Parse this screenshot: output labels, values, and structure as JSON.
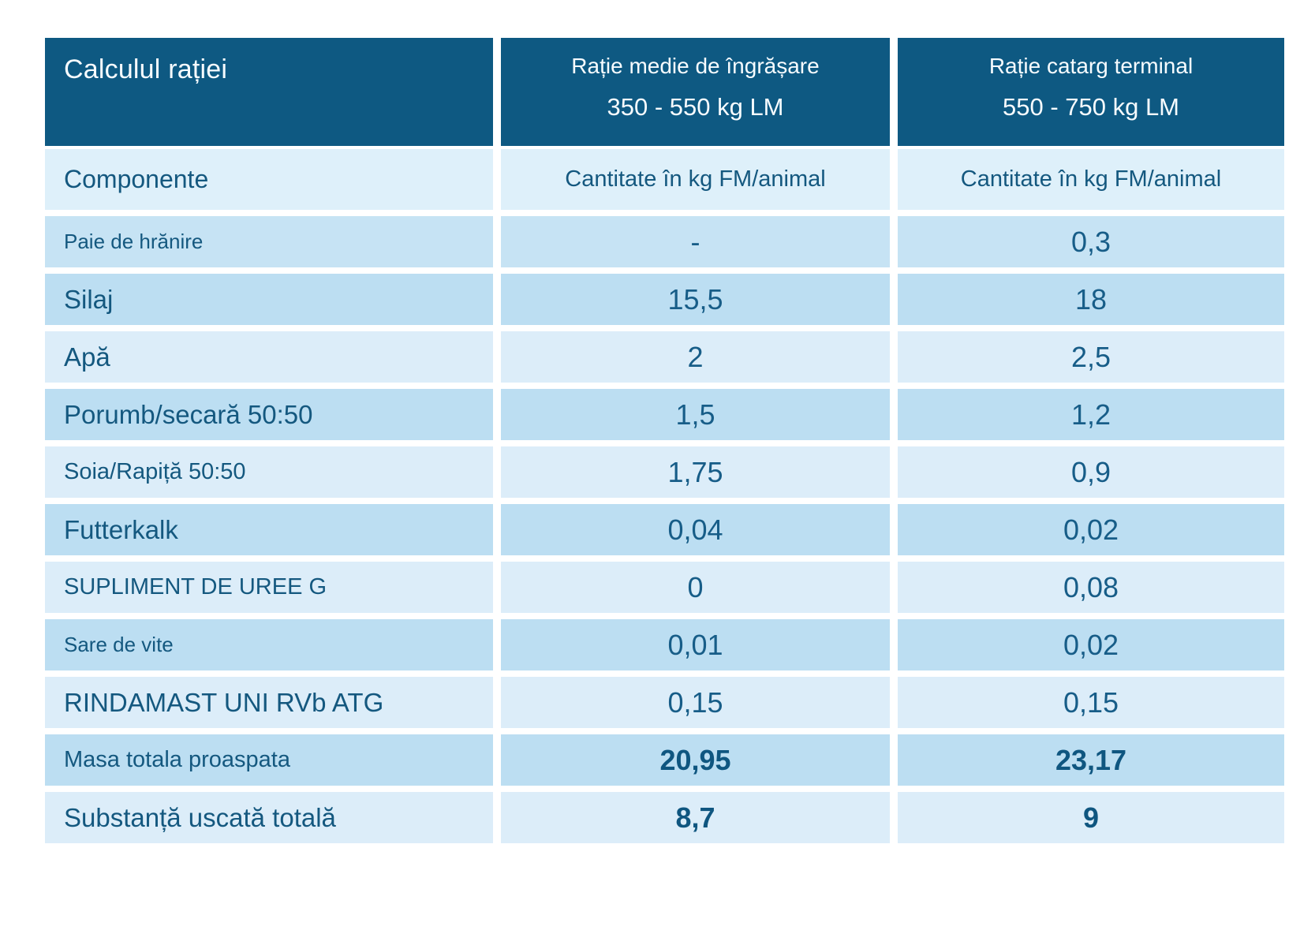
{
  "colors": {
    "header_background": "#0e5982",
    "header_text": "#f7fcff",
    "row_light": "#dcedf9",
    "row_medium_light": "#c6e3f4",
    "row_medium": "#bcdef2",
    "cell_text": "#14587f",
    "value_text": "#175d88",
    "page_background": "#ffffff"
  },
  "table": {
    "header": {
      "title": "Calculul rației",
      "col2": {
        "line1": "Rație medie de îngrășare",
        "line2": "350 - 550 kg LM"
      },
      "col3": {
        "line1": "Rație catarg terminal",
        "line2": "550 - 750 kg LM"
      }
    },
    "subheader": {
      "label": "Componente",
      "col2": "Cantitate în kg FM/animal",
      "col3": "Cantitate în kg FM/animal"
    },
    "rows": [
      {
        "label": "Paie de hrănire",
        "values": [
          "-",
          "0,3"
        ],
        "shade": "mlight",
        "size": "sm",
        "bold": false
      },
      {
        "label": "Silaj",
        "values": [
          "15,5",
          "18"
        ],
        "shade": "medium",
        "size": "lg",
        "bold": false
      },
      {
        "label": "Apă",
        "values": [
          "2",
          "2,5"
        ],
        "shade": "light",
        "size": "lg",
        "bold": false
      },
      {
        "label": "Porumb/secară 50:50",
        "values": [
          "1,5",
          "1,2"
        ],
        "shade": "medium",
        "size": "lg",
        "bold": false
      },
      {
        "label": "Soia/Rapiță 50:50",
        "values": [
          "1,75",
          "0,9"
        ],
        "shade": "light",
        "size": "md",
        "bold": false
      },
      {
        "label": "Futterkalk",
        "values": [
          "0,04",
          "0,02"
        ],
        "shade": "medium",
        "size": "lg",
        "bold": false
      },
      {
        "label": "SUPLIMENT DE UREE G",
        "values": [
          "0",
          "0,08"
        ],
        "shade": "light",
        "size": "md",
        "bold": false
      },
      {
        "label": "Sare de vite",
        "values": [
          "0,01",
          "0,02"
        ],
        "shade": "medium",
        "size": "sm",
        "bold": false
      },
      {
        "label": "RINDAMAST UNI RVb ATG",
        "values": [
          "0,15",
          "0,15"
        ],
        "shade": "light",
        "size": "lg",
        "bold": false
      },
      {
        "label": "Masa totala proaspata",
        "values": [
          "20,95",
          "23,17"
        ],
        "shade": "medium",
        "size": "md",
        "bold": true
      },
      {
        "label": "Substanță uscată totală",
        "values": [
          "8,7",
          "9"
        ],
        "shade": "light",
        "size": "lg",
        "bold": true
      }
    ]
  },
  "chart_data": {
    "type": "table",
    "title": "Calculul rației",
    "columns": [
      "Componente",
      "Rație medie de îngrășare 350 - 550 kg LM — Cantitate în kg FM/animal",
      "Rație catarg terminal 550 - 750 kg LM — Cantitate în kg FM/animal"
    ],
    "rows": [
      [
        "Paie de hrănire",
        "-",
        "0,3"
      ],
      [
        "Silaj",
        "15,5",
        "18"
      ],
      [
        "Apă",
        "2",
        "2,5"
      ],
      [
        "Porumb/secară 50:50",
        "1,5",
        "1,2"
      ],
      [
        "Soia/Rapiță 50:50",
        "1,75",
        "0,9"
      ],
      [
        "Futterkalk",
        "0,04",
        "0,02"
      ],
      [
        "SUPLIMENT DE UREE G",
        "0",
        "0,08"
      ],
      [
        "Sare de vite",
        "0,01",
        "0,02"
      ],
      [
        "RINDAMAST UNI RVb ATG",
        "0,15",
        "0,15"
      ],
      [
        "Masa totala proaspata",
        "20,95",
        "23,17"
      ],
      [
        "Substanță uscată totală",
        "8,7",
        "9"
      ]
    ]
  }
}
